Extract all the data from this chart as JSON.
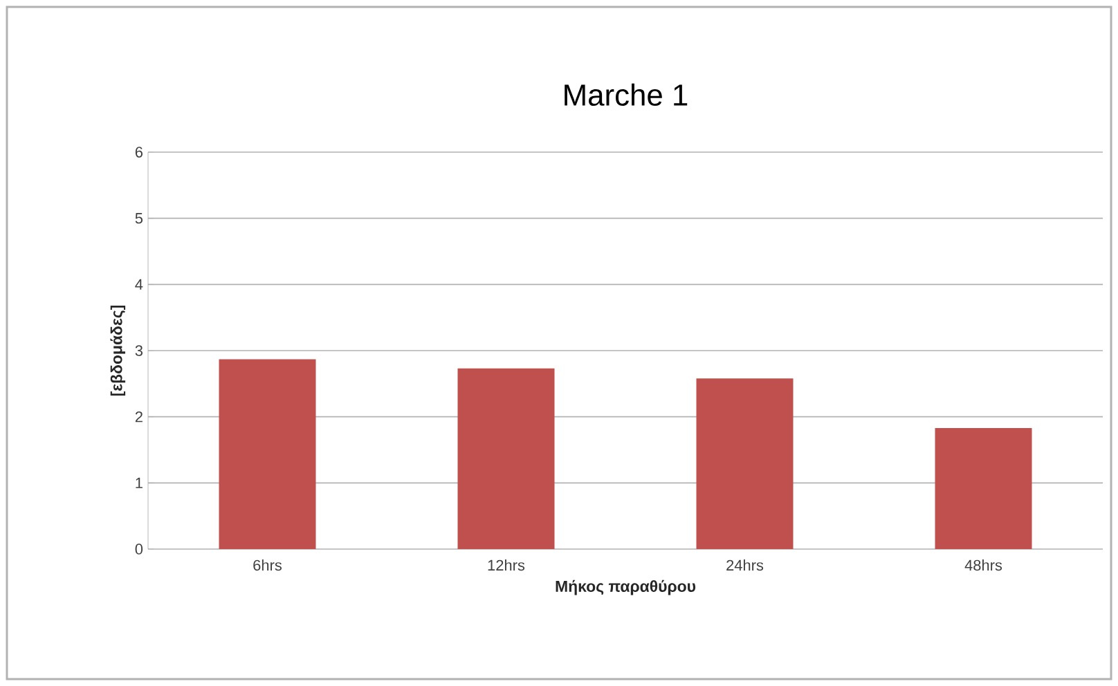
{
  "chart_data": {
    "type": "bar",
    "title": "Marche 1",
    "xlabel": "Μήκος παραθύρου",
    "ylabel": "[εβδομάδες]",
    "categories": [
      "6hrs",
      "12hrs",
      "24hrs",
      "48hrs"
    ],
    "values": [
      2.87,
      2.73,
      2.58,
      1.83
    ],
    "color": "#c0504d",
    "ylim": [
      0,
      6
    ],
    "yticks": [
      0,
      1,
      2,
      3,
      4,
      5,
      6
    ],
    "grid": "y"
  }
}
